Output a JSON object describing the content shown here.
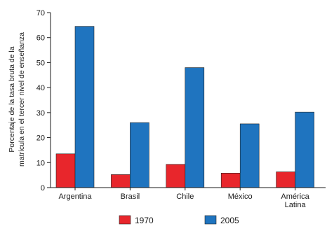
{
  "chart_data": {
    "type": "bar",
    "categories": [
      [
        "Argentina"
      ],
      [
        "Brasil"
      ],
      [
        "Chile"
      ],
      [
        "México"
      ],
      [
        "América",
        "Latina"
      ]
    ],
    "series": [
      {
        "name": "1970",
        "color": "#e8262c",
        "values": [
          13.5,
          5.2,
          9.3,
          5.8,
          6.3
        ]
      },
      {
        "name": "2005",
        "color": "#1f74bf",
        "values": [
          64.5,
          26.0,
          48.0,
          25.5,
          30.2
        ]
      }
    ],
    "ylabel": [
      "Porcentaje de la tasa bruta de la",
      "matrícula en el tercer nivel de enseñanza"
    ],
    "ylim": [
      0,
      70
    ],
    "yticks": [
      0,
      10,
      20,
      30,
      40,
      50,
      60,
      70
    ],
    "grid": false,
    "legend_position": "bottom"
  }
}
